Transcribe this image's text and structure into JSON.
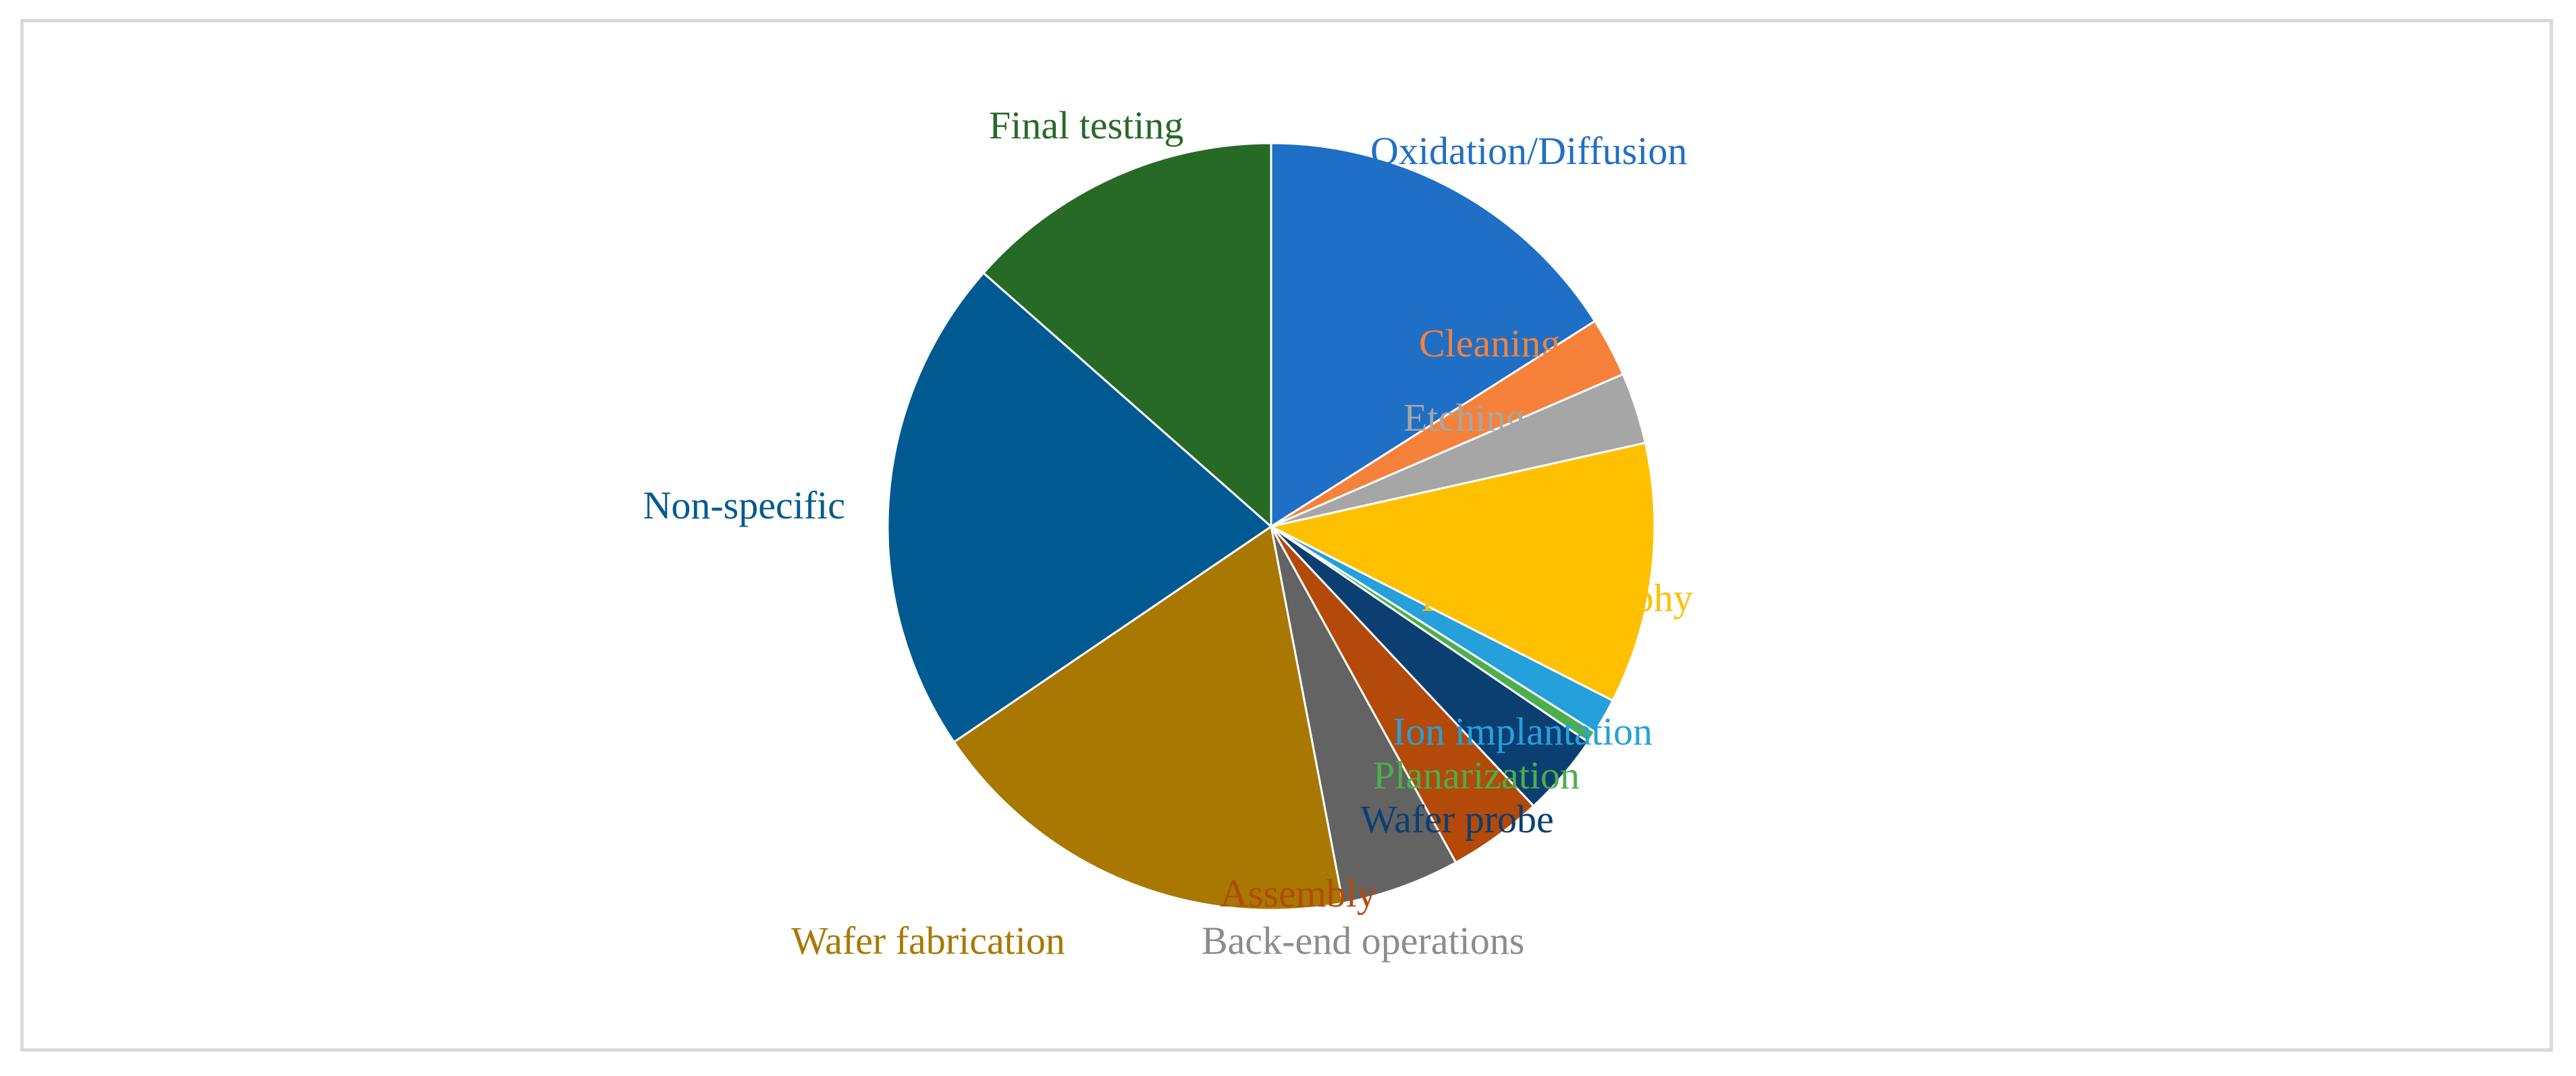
{
  "chart_data": {
    "type": "pie",
    "title": "",
    "legend": "none",
    "categories": [
      "Oxidation/Diffusion",
      "Cleaning",
      "Etching",
      "Photolithography",
      "Ion implantation",
      "Planarization",
      "Wafer probe",
      "Assembly",
      "Back-end operations",
      "Wafer fabrication",
      "Non-specific",
      "Final testing"
    ],
    "values": [
      16.0,
      2.5,
      3.0,
      11.0,
      1.5,
      0.5,
      3.5,
      4.0,
      5.0,
      18.5,
      21.0,
      13.5
    ],
    "unit": "%",
    "colors": [
      "#1f6fc6",
      "#f5813a",
      "#a6a6a6",
      "#ffc000",
      "#26a0da",
      "#4cae4c",
      "#0b3f72",
      "#b34a0a",
      "#636363",
      "#a87800",
      "#005a92",
      "#276a26"
    ],
    "label_colors": [
      "#1f6fc6",
      "#f5813a",
      "#a6a6a6",
      "#ffc000",
      "#26a0da",
      "#4cae4c",
      "#0b3f72",
      "#b34a0a",
      "#8c8c8c",
      "#a87800",
      "#005a92",
      "#276a26"
    ]
  }
}
